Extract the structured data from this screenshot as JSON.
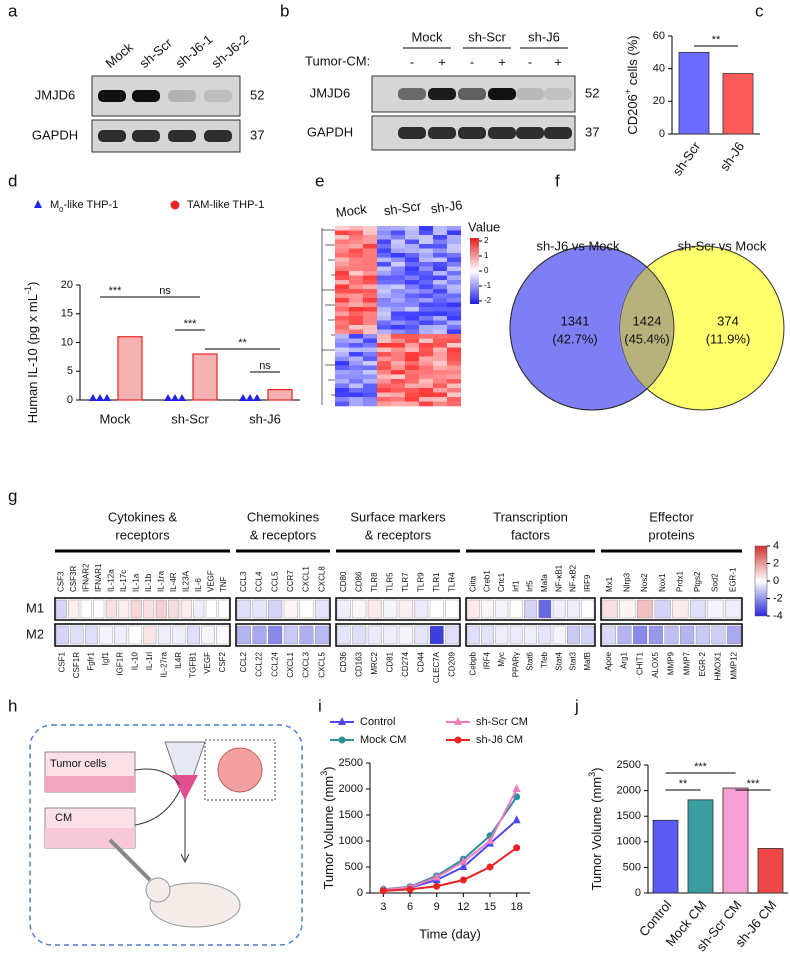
{
  "panel_labels": [
    "a",
    "b",
    "c",
    "d",
    "e",
    "f",
    "g",
    "h",
    "i",
    "j"
  ],
  "blot_a": {
    "lanes": [
      "Mock",
      "sh-Scr",
      "sh-J6-1",
      "sh-J6-2"
    ],
    "rows": [
      {
        "name": "JMJD6",
        "kda": 52
      },
      {
        "name": "GAPDH",
        "kda": 37
      }
    ]
  },
  "blot_b": {
    "groups": [
      "Mock",
      "sh-Scr",
      "sh-J6"
    ],
    "treatment_label": "Tumor-CM:",
    "treatment": [
      "-",
      "+",
      "-",
      "+",
      "-",
      "+"
    ],
    "rows": [
      {
        "name": "JMJD6",
        "kda": 52
      },
      {
        "name": "GAPDH",
        "kda": 37
      }
    ]
  },
  "heatmap_e": {
    "columns": [
      "Mock",
      "sh-Scr",
      "sh-J6"
    ],
    "legend_title": "Value",
    "colorbar_ticks": [
      2,
      1,
      0,
      -1,
      -2
    ]
  },
  "venn_f": {
    "sets": [
      "sh-J6 vs Mock",
      "sh-Scr vs Mock"
    ],
    "regions": [
      {
        "count": 1341,
        "percent": "(42.7%)"
      },
      {
        "count": 1424,
        "percent": "(45.4%)"
      },
      {
        "count": 374,
        "percent": "(11.9%)"
      }
    ]
  },
  "schematic_h": {
    "labels": [
      "Tumor cells",
      "CM"
    ]
  },
  "chart_data": [
    {
      "type": "bar",
      "ylabel": [
        "CD206",
        "+",
        " cells (%)"
      ],
      "categories": [
        "sh-Scr",
        "sh-J6"
      ],
      "values": [
        50,
        37
      ],
      "colors": [
        "#6b6bff",
        "#ff5a5a"
      ],
      "ylim": [
        0,
        60
      ],
      "yticks": [
        0,
        20,
        40,
        60
      ],
      "annotations": [
        "**"
      ]
    },
    {
      "type": "grouped_bar",
      "ylabel": [
        "Human IL-10 (pg x mL",
        "-1",
        ")"
      ],
      "categories": [
        "Mock",
        "sh-Scr",
        "sh-J6"
      ],
      "series": [
        {
          "name": [
            "M",
            "0",
            "-like THP-1"
          ],
          "color": "#2323e8",
          "values": [
            0,
            0,
            0
          ]
        },
        {
          "name": "TAM-like THP-1",
          "color": "#e82323",
          "values": [
            11,
            8,
            1.8
          ]
        }
      ],
      "ylim": [
        0,
        20
      ],
      "yticks": [
        0,
        5,
        10,
        15,
        20
      ],
      "annotations": [
        "***",
        "ns",
        "***",
        "**",
        "ns"
      ]
    },
    {
      "type": "line",
      "xlabel": "Time (day)",
      "ylabel": [
        "Tumor Volume (mm",
        "3",
        ")"
      ],
      "x": [
        3,
        6,
        9,
        12,
        15,
        18
      ],
      "xlim": [
        1.5,
        19.5
      ],
      "xticks": [
        3,
        6,
        9,
        12,
        15,
        18
      ],
      "ylim": [
        0,
        2500
      ],
      "yticks": [
        0,
        500,
        1000,
        1500,
        2000,
        2500
      ],
      "series": [
        {
          "name": "Control",
          "color": "#4a4af0",
          "marker": "triangle",
          "values": [
            60,
            100,
            250,
            500,
            950,
            1400
          ]
        },
        {
          "name": "Mock CM",
          "color": "#2e8f9a",
          "marker": "circle",
          "values": [
            70,
            120,
            330,
            650,
            1100,
            1850
          ]
        },
        {
          "name": "sh-Scr CM",
          "color": "#f07cc0",
          "marker": "triangle",
          "values": [
            60,
            110,
            300,
            600,
            1000,
            2000
          ]
        },
        {
          "name": "sh-J6 CM",
          "color": "#e82323",
          "marker": "circle",
          "values": [
            40,
            70,
            130,
            250,
            500,
            870
          ]
        }
      ]
    },
    {
      "type": "bar",
      "ylabel": [
        "Tumor Volume (mm",
        "3",
        ")"
      ],
      "categories": [
        "Control",
        "Mock CM",
        "sh-Scr CM",
        "sh-J6 CM"
      ],
      "values": [
        1420,
        1820,
        2050,
        870
      ],
      "colors": [
        "#5a5af0",
        "#3a9ea0",
        "#f8a0d4",
        "#f04848"
      ],
      "ylim": [
        0,
        2500
      ],
      "yticks": [
        0,
        500,
        1000,
        1500,
        2000,
        2500
      ],
      "annotations": [
        "***",
        "**",
        "***"
      ]
    },
    {
      "type": "heatmap",
      "groups": [
        [
          "Cytokines &",
          "receptors"
        ],
        [
          "Chemokines",
          "& receptors"
        ],
        [
          "Surface markers",
          "& receptors"
        ],
        [
          "Transcription",
          "factors"
        ],
        [
          "Effector",
          "proteins"
        ]
      ],
      "rows": [
        {
          "name": "M1",
          "genes": [
            [
              "CSF3",
              "CSF3R",
              "IFNAR2",
              "IFNAR1",
              "IL-12a",
              "IL-17c",
              "IL-1a",
              "IL-1b",
              "IL-1ra",
              "IL-4R",
              "IL23A",
              "IL-6",
              "VEGF",
              "TNF"
            ],
            [
              "CCL3",
              "CCL4",
              "CCL5",
              "CCR7",
              "CXCL1",
              "CXCL8"
            ],
            [
              "CD80",
              "CD86",
              "TLR8",
              "TLR5",
              "TLR7",
              "TLR9",
              "TLR1",
              "TLR4"
            ],
            [
              "Ciita",
              "Creb1",
              "Crtc1",
              "Irf1",
              "Irf5",
              "Mafa",
              "NF-κB1",
              "NF-κB2",
              "IRF9"
            ],
            [
              "Mx1",
              "Nlrp3",
              "Nos2",
              "Nox1",
              "Prdx1",
              "Ptgs2",
              "Sod2",
              "EGR-1"
            ]
          ],
          "values": [
            [
              -0.8,
              0.3,
              0,
              0,
              0.6,
              0.3,
              0.8,
              0.6,
              0.9,
              0.7,
              0.4,
              -0.3,
              0,
              0
            ],
            [
              -0.6,
              -0.5,
              -0.8,
              0.2,
              0,
              -0.5
            ],
            [
              -0.3,
              0.2,
              0.4,
              -0.2,
              0.3,
              -0.4,
              0,
              0
            ],
            [
              0.4,
              0.2,
              -0.2,
              0,
              -0.8,
              -2.8,
              -0.3,
              -0.3,
              0
            ],
            [
              0.6,
              0.2,
              1.2,
              -0.8,
              0.4,
              -0.6,
              -0.2,
              -0.3
            ]
          ]
        },
        {
          "name": "M2",
          "genes": [
            [
              "CSF1",
              "CSF1R",
              "Fgfr1",
              "Igf1",
              "IGF1R",
              "IL-10",
              "IL-1rl",
              "IL-27ra",
              "IL4R",
              "TGFB1",
              "VEGF",
              "CSF2"
            ],
            [
              "CCL2",
              "CCL22",
              "CCL24",
              "CXCL1",
              "CXCL3",
              "CXCL5"
            ],
            [
              "CD36",
              "CD163",
              "MRC2",
              "CD81",
              "CD274",
              "CD44",
              "CLEC7A",
              "CD209"
            ],
            [
              "Cebpb",
              "IRF4",
              "Myc",
              "PPARγ",
              "Stat6",
              "Tfeb",
              "Stat4",
              "Stat3",
              "MafB"
            ],
            [
              "Apoe",
              "Arg1",
              "CHIT1",
              "ALOX5",
              "MMP9",
              "MMP7",
              "EGR-2",
              "HMOX1",
              "MMP12"
            ]
          ],
          "values": [
            [
              -0.8,
              -0.6,
              -0.6,
              -0.2,
              -0.3,
              0,
              0.5,
              -0.3,
              -0.3,
              -0.6,
              -0.2,
              -0.1
            ],
            [
              -1.4,
              -1.6,
              -2.2,
              -1.0,
              -1.5,
              -1.3
            ],
            [
              -0.5,
              -0.6,
              -0.4,
              -0.3,
              -0.2,
              -0.5,
              -3.6,
              -0.6
            ],
            [
              -0.6,
              -0.5,
              -0.3,
              -0.4,
              -0.3,
              -0.5,
              -0.2,
              -1.0,
              -0.8
            ],
            [
              -0.7,
              -1.4,
              -2.2,
              -1.9,
              -1.2,
              -1.4,
              -1.0,
              -0.9,
              -1.6
            ]
          ]
        }
      ],
      "colorbar_lim": [
        -4,
        4
      ],
      "colorbar_ticks": [
        4,
        2,
        0,
        -2,
        -4
      ]
    }
  ]
}
